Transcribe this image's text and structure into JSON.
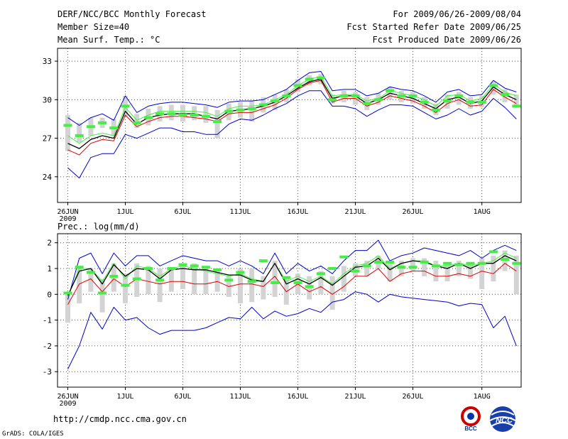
{
  "header": {
    "title": "DERF/NCC/BCC Monthly Forecast",
    "member_size": "Member Size=40",
    "variable_top": "Mean Surf. Temp.: °C",
    "period": "For 2009/06/26-2009/08/04",
    "refer_date": "Fcst Started Refer Date 2009/06/25",
    "produced_date": "Fcst Produced Date 2009/06/26"
  },
  "footer": {
    "url": "http://cmdp.ncc.cma.gov.cn",
    "credit": "GrADS: COLA/IGES",
    "logo_left_text": "BCC",
    "logo_right_text": "NCC"
  },
  "colors": {
    "box": "#d3d3d3",
    "median": "#44ee44",
    "mean": "#000000",
    "spread": "#0000cc",
    "std": "#dd0000",
    "grid": "#555555"
  },
  "chart_data": [
    {
      "type": "line",
      "title": "Mean Surf. Temp.: °C",
      "x_tick_labels": [
        "26JUN",
        "1JUL",
        "6JUL",
        "11JUL",
        "16JUL",
        "21JUL",
        "26JUL",
        "1AUG"
      ],
      "x_tick_days": [
        0,
        5,
        10,
        15,
        20,
        25,
        30,
        36
      ],
      "year_label": "2009",
      "ylim": [
        22.0,
        34.0
      ],
      "yticks": [
        24,
        27,
        30,
        33
      ],
      "days": [
        0,
        1,
        2,
        3,
        4,
        5,
        6,
        7,
        8,
        9,
        10,
        11,
        12,
        13,
        14,
        15,
        16,
        17,
        18,
        19,
        20,
        21,
        22,
        23,
        24,
        25,
        26,
        27,
        28,
        29,
        30,
        31,
        32,
        33,
        34,
        35,
        36,
        37,
        38,
        39
      ],
      "series": [
        {
          "name": "max",
          "role": "spread",
          "values": [
            28.6,
            28.0,
            28.6,
            28.9,
            28.4,
            30.3,
            29.0,
            29.5,
            29.7,
            29.8,
            29.8,
            29.7,
            29.6,
            29.4,
            29.8,
            29.9,
            29.9,
            30.0,
            30.4,
            30.8,
            31.5,
            32.1,
            32.2,
            30.7,
            30.8,
            30.8,
            30.3,
            30.5,
            31.0,
            30.8,
            30.7,
            30.3,
            29.8,
            30.6,
            30.8,
            30.3,
            30.4,
            31.5,
            30.9,
            30.6
          ]
        },
        {
          "name": "upper",
          "role": "std",
          "values": [
            27.2,
            26.6,
            27.2,
            27.4,
            27.2,
            29.4,
            28.4,
            28.8,
            29.1,
            29.1,
            29.1,
            29.1,
            29.0,
            28.7,
            29.3,
            29.5,
            29.5,
            29.6,
            30.0,
            30.4,
            31.1,
            31.6,
            31.8,
            30.3,
            30.4,
            30.4,
            29.9,
            30.1,
            30.7,
            30.5,
            30.3,
            30.0,
            29.5,
            30.3,
            30.4,
            29.9,
            30.1,
            31.2,
            30.6,
            30.3
          ]
        },
        {
          "name": "mean",
          "role": "mean",
          "values": [
            26.6,
            26.2,
            26.9,
            27.2,
            27.0,
            29.1,
            28.1,
            28.6,
            28.8,
            28.9,
            28.9,
            28.9,
            28.7,
            28.5,
            29.1,
            29.2,
            29.3,
            29.5,
            29.8,
            30.3,
            30.9,
            31.4,
            31.6,
            30.1,
            30.3,
            30.3,
            29.7,
            30.0,
            30.5,
            30.3,
            30.1,
            29.7,
            29.3,
            30.0,
            30.2,
            29.7,
            29.9,
            31.0,
            30.4,
            30.0
          ]
        },
        {
          "name": "lower",
          "role": "std",
          "values": [
            26.1,
            25.7,
            26.6,
            26.9,
            26.8,
            28.8,
            27.9,
            28.3,
            28.6,
            28.7,
            28.7,
            28.6,
            28.5,
            28.3,
            28.9,
            29.0,
            29.0,
            29.3,
            29.6,
            30.1,
            30.8,
            31.3,
            31.5,
            29.8,
            30.1,
            30.1,
            29.5,
            29.8,
            30.3,
            30.1,
            29.9,
            29.5,
            29.0,
            29.7,
            30.0,
            29.5,
            29.6,
            30.8,
            30.2,
            29.7
          ]
        },
        {
          "name": "min",
          "role": "spread",
          "values": [
            24.7,
            23.9,
            25.5,
            25.8,
            25.8,
            27.3,
            27.0,
            27.4,
            27.8,
            27.8,
            27.5,
            27.5,
            27.3,
            27.3,
            28.1,
            28.5,
            28.4,
            28.8,
            29.3,
            29.7,
            30.3,
            30.7,
            30.7,
            29.5,
            29.5,
            29.3,
            28.7,
            29.2,
            29.6,
            29.6,
            29.5,
            29.0,
            28.5,
            28.8,
            29.3,
            28.8,
            29.1,
            30.1,
            29.4,
            28.5
          ]
        },
        {
          "name": "median",
          "role": "median",
          "values": [
            28.0,
            27.2,
            27.9,
            28.2,
            27.8,
            29.5,
            28.2,
            28.6,
            28.9,
            28.9,
            28.8,
            28.8,
            28.7,
            28.3,
            29.1,
            29.2,
            29.3,
            29.6,
            29.9,
            30.3,
            31.1,
            31.6,
            31.7,
            30.0,
            30.3,
            30.3,
            29.7,
            30.0,
            30.7,
            30.3,
            30.3,
            29.8,
            29.2,
            29.9,
            30.3,
            29.8,
            29.8,
            31.1,
            30.4,
            29.5
          ]
        },
        {
          "name": "box_top",
          "role": "box",
          "values": [
            28.8,
            28.2,
            28.6,
            28.6,
            28.5,
            30.3,
            28.9,
            29.3,
            29.5,
            29.6,
            29.6,
            29.5,
            29.5,
            29.2,
            29.7,
            29.8,
            29.9,
            30.2,
            30.4,
            30.8,
            31.6,
            31.9,
            32.0,
            30.4,
            30.7,
            30.6,
            30.2,
            30.5,
            31.0,
            30.7,
            30.6,
            30.2,
            29.7,
            30.4,
            30.6,
            30.2,
            30.3,
            31.4,
            30.8,
            30.4
          ]
        },
        {
          "name": "box_bottom",
          "role": "box",
          "values": [
            26.0,
            26.7,
            27.2,
            27.8,
            27.2,
            28.7,
            27.8,
            28.0,
            28.3,
            28.4,
            28.3,
            28.4,
            28.2,
            27.0,
            28.4,
            28.6,
            28.3,
            29.0,
            29.2,
            29.8,
            30.6,
            31.1,
            31.2,
            29.7,
            29.8,
            29.6,
            29.2,
            29.6,
            30.0,
            29.8,
            29.7,
            29.3,
            28.8,
            29.3,
            29.6,
            29.3,
            29.4,
            30.4,
            29.8,
            29.4
          ]
        }
      ]
    },
    {
      "type": "line",
      "title": "Prec.: log(mm/d)",
      "x_tick_labels": [
        "26JUN",
        "1JUL",
        "6JUL",
        "11JUL",
        "16JUL",
        "21JUL",
        "26JUL",
        "1AUG"
      ],
      "x_tick_days": [
        0,
        5,
        10,
        15,
        20,
        25,
        30,
        36
      ],
      "year_label": "2009",
      "ylim": [
        -3.6,
        2.35
      ],
      "yticks": [
        -3,
        -2,
        -1,
        0,
        1,
        2
      ],
      "days": [
        0,
        1,
        2,
        3,
        4,
        5,
        6,
        7,
        8,
        9,
        10,
        11,
        12,
        13,
        14,
        15,
        16,
        17,
        18,
        19,
        20,
        21,
        22,
        23,
        24,
        25,
        26,
        27,
        28,
        29,
        30,
        31,
        32,
        33,
        34,
        35,
        36,
        37,
        38,
        39
      ],
      "series": [
        {
          "name": "max",
          "role": "spread",
          "values": [
            -0.2,
            1.4,
            1.6,
            0.8,
            1.6,
            1.1,
            1.5,
            1.5,
            1.1,
            1.3,
            1.5,
            1.4,
            1.3,
            1.3,
            1.1,
            1.3,
            1.1,
            0.8,
            1.6,
            0.8,
            1.2,
            0.9,
            1.1,
            0.8,
            1.3,
            1.7,
            1.7,
            2.1,
            1.3,
            1.5,
            1.6,
            1.8,
            1.7,
            1.6,
            1.5,
            1.7,
            1.4,
            1.7,
            1.9,
            1.7
          ]
        },
        {
          "name": "upper",
          "role": "std",
          "values": [
            -0.1,
            1.0,
            1.0,
            0.5,
            1.2,
            0.6,
            1.1,
            1.0,
            0.7,
            1.0,
            1.1,
            1.0,
            0.9,
            0.8,
            0.7,
            0.8,
            0.6,
            0.5,
            1.2,
            0.5,
            0.7,
            0.5,
            0.7,
            0.4,
            0.8,
            1.1,
            1.2,
            1.5,
            1.0,
            1.2,
            1.3,
            1.3,
            1.1,
            1.1,
            1.2,
            1.1,
            1.2,
            1.3,
            1.6,
            1.4
          ]
        },
        {
          "name": "mean",
          "role": "mean",
          "values": [
            -0.05,
            0.9,
            1.0,
            0.4,
            1.15,
            0.7,
            1.0,
            0.95,
            0.6,
            0.95,
            1.0,
            0.95,
            0.95,
            0.85,
            0.75,
            0.75,
            0.55,
            0.5,
            1.2,
            0.4,
            0.6,
            0.4,
            0.65,
            0.35,
            0.7,
            1.05,
            1.1,
            1.4,
            0.95,
            1.2,
            1.3,
            1.25,
            1.1,
            1.0,
            1.2,
            1.0,
            1.2,
            1.2,
            1.5,
            1.3
          ]
        },
        {
          "name": "lower",
          "role": "std",
          "values": [
            -0.4,
            0.4,
            0.6,
            0.1,
            0.6,
            0.3,
            0.6,
            0.5,
            0.4,
            0.5,
            0.5,
            0.4,
            0.4,
            0.5,
            0.3,
            0.4,
            0.4,
            0.3,
            0.7,
            0.1,
            0.4,
            0.1,
            0.3,
            0.0,
            0.3,
            0.7,
            0.7,
            1.0,
            0.5,
            0.8,
            0.9,
            0.9,
            0.7,
            0.7,
            0.8,
            0.7,
            0.9,
            0.8,
            1.2,
            0.9
          ]
        },
        {
          "name": "min",
          "role": "spread",
          "values": [
            -2.9,
            -2.0,
            -0.7,
            -1.35,
            -0.5,
            -1.0,
            -0.9,
            -1.3,
            -1.55,
            -1.4,
            -1.4,
            -1.4,
            -1.3,
            -1.1,
            -0.9,
            -0.95,
            -0.5,
            -0.95,
            -0.65,
            -0.85,
            -0.75,
            -0.55,
            -0.7,
            -0.3,
            -0.2,
            0.1,
            0.0,
            -0.3,
            0.0,
            -0.1,
            -0.15,
            -0.2,
            -0.25,
            -0.3,
            -0.45,
            -0.35,
            -0.4,
            -1.3,
            -0.85,
            -2.0
          ]
        },
        {
          "name": "median",
          "role": "median",
          "values": [
            0.05,
            1.05,
            0.85,
            0.05,
            0.7,
            0.35,
            0.6,
            1.0,
            0.55,
            1.0,
            1.15,
            1.1,
            1.05,
            0.95,
            0.55,
            0.85,
            0.5,
            1.3,
            0.45,
            0.65,
            0.45,
            0.3,
            0.8,
            1.0,
            1.45,
            0.9,
            1.1,
            1.25,
            1.25,
            1.05,
            1.05,
            1.25,
            1.1,
            1.2,
            1.15,
            1.2,
            1.2,
            1.65,
            1.35,
            1.2
          ]
        },
        {
          "name": "box_top",
          "role": "box",
          "values": [
            0.0,
            1.1,
            1.0,
            0.6,
            1.2,
            0.8,
            1.2,
            1.1,
            1.0,
            1.0,
            1.2,
            1.2,
            1.0,
            1.0,
            0.7,
            1.0,
            1.0,
            0.7,
            1.3,
            0.7,
            0.8,
            0.7,
            0.9,
            0.7,
            1.1,
            1.2,
            1.3,
            1.5,
            1.2,
            1.3,
            1.4,
            1.4,
            1.3,
            1.2,
            1.3,
            1.2,
            1.4,
            1.5,
            1.7,
            1.5
          ]
        },
        {
          "name": "box_bottom",
          "role": "box",
          "values": [
            -1.1,
            -0.35,
            0.1,
            -0.7,
            0.1,
            -0.35,
            -0.1,
            0.0,
            -0.3,
            0.1,
            0.2,
            0.0,
            0.0,
            0.1,
            -0.1,
            -0.35,
            -0.3,
            -0.2,
            -0.1,
            -0.4,
            0.0,
            -0.2,
            0.0,
            -0.6,
            0.1,
            0.7,
            0.7,
            1.0,
            0.5,
            0.7,
            0.9,
            0.7,
            0.5,
            0.5,
            0.7,
            0.6,
            0.2,
            0.5,
            0.9,
            0.0
          ]
        }
      ]
    }
  ]
}
